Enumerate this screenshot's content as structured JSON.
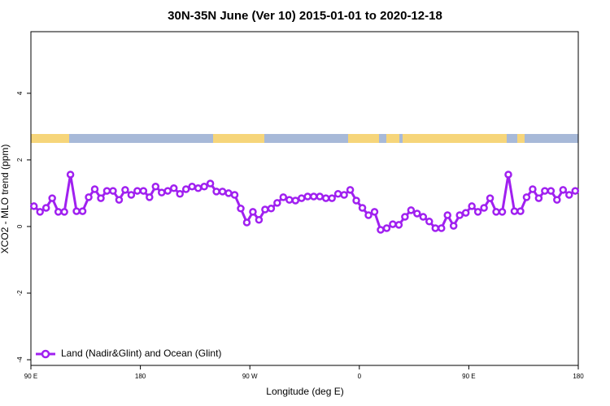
{
  "chart_data": {
    "type": "line",
    "title": "30N-35N June (Ver 10)   2015-01-01 to 2020-12-18",
    "x_label": "Longitude (deg E)",
    "y_label": "XCO2 - MLO trend (ppm)",
    "xlim": [
      90,
      540
    ],
    "ylim": [
      -4.17,
      5.85
    ],
    "xticks": [
      {
        "value": 90,
        "label": "90 E"
      },
      180,
      {
        "value": 270,
        "label": "90 W"
      },
      {
        "value": 360,
        "label": "0"
      },
      {
        "value": 450,
        "label": "90 E"
      },
      {
        "value": 540,
        "label": "180"
      }
    ],
    "yticks": [
      -4,
      -2,
      0,
      2,
      4
    ],
    "legend": "bottomleft",
    "x": [
      92.5,
      97.5,
      102.5,
      107.5,
      112.5,
      117.5,
      122.5,
      127.5,
      132.5,
      137.5,
      142.5,
      147.5,
      152.5,
      157.5,
      162.5,
      167.5,
      172.5,
      177.5,
      182.5,
      187.5,
      192.5,
      197.5,
      202.5,
      207.5,
      212.5,
      217.5,
      222.5,
      227.5,
      232.5,
      237.5,
      242.5,
      247.5,
      252.5,
      257.5,
      262.5,
      267.5,
      272.5,
      277.5,
      282.5,
      287.5,
      292.5,
      297.5,
      302.5,
      307.5,
      312.5,
      317.5,
      322.5,
      327.5,
      332.5,
      337.5,
      342.5,
      347.5,
      352.5,
      357.5,
      362.5,
      367.5,
      372.5,
      377.5,
      382.5,
      387.5,
      392.5,
      397.5,
      402.5,
      407.5,
      412.5,
      417.5,
      422.5,
      427.5,
      432.5,
      437.5,
      442.5,
      447.5,
      452.5,
      457.5,
      462.5,
      467.5,
      472.5,
      477.5,
      482.5,
      487.5,
      492.5,
      497.5,
      502.5,
      507.5,
      512.5,
      517.5,
      522.5,
      527.5,
      532.5,
      537.5
    ],
    "series": [
      {
        "name": "Land (Nadir&Glint) and Ocean (Glint)",
        "color": "#a020f0",
        "values": [
          0.61,
          0.44,
          0.56,
          0.85,
          0.44,
          0.44,
          1.56,
          0.46,
          0.46,
          0.88,
          1.12,
          0.85,
          1.07,
          1.07,
          0.8,
          1.1,
          0.95,
          1.07,
          1.07,
          0.88,
          1.2,
          1.02,
          1.07,
          1.15,
          0.98,
          1.12,
          1.2,
          1.15,
          1.2,
          1.29,
          1.05,
          1.05,
          1.0,
          0.95,
          0.54,
          0.12,
          0.44,
          0.2,
          0.51,
          0.54,
          0.71,
          0.88,
          0.8,
          0.78,
          0.85,
          0.9,
          0.9,
          0.9,
          0.85,
          0.85,
          0.98,
          0.95,
          1.1,
          0.78,
          0.56,
          0.34,
          0.44,
          -0.1,
          -0.05,
          0.07,
          0.05,
          0.29,
          0.49,
          0.39,
          0.29,
          0.15,
          -0.05,
          -0.05,
          0.34,
          0.02,
          0.34,
          0.41,
          0.61,
          0.44,
          0.56,
          0.85,
          0.44,
          0.44,
          1.56,
          0.46,
          0.46,
          0.88,
          1.12,
          0.85,
          1.07,
          1.07,
          0.8,
          1.1,
          0.95,
          1.07
        ]
      }
    ]
  }
}
